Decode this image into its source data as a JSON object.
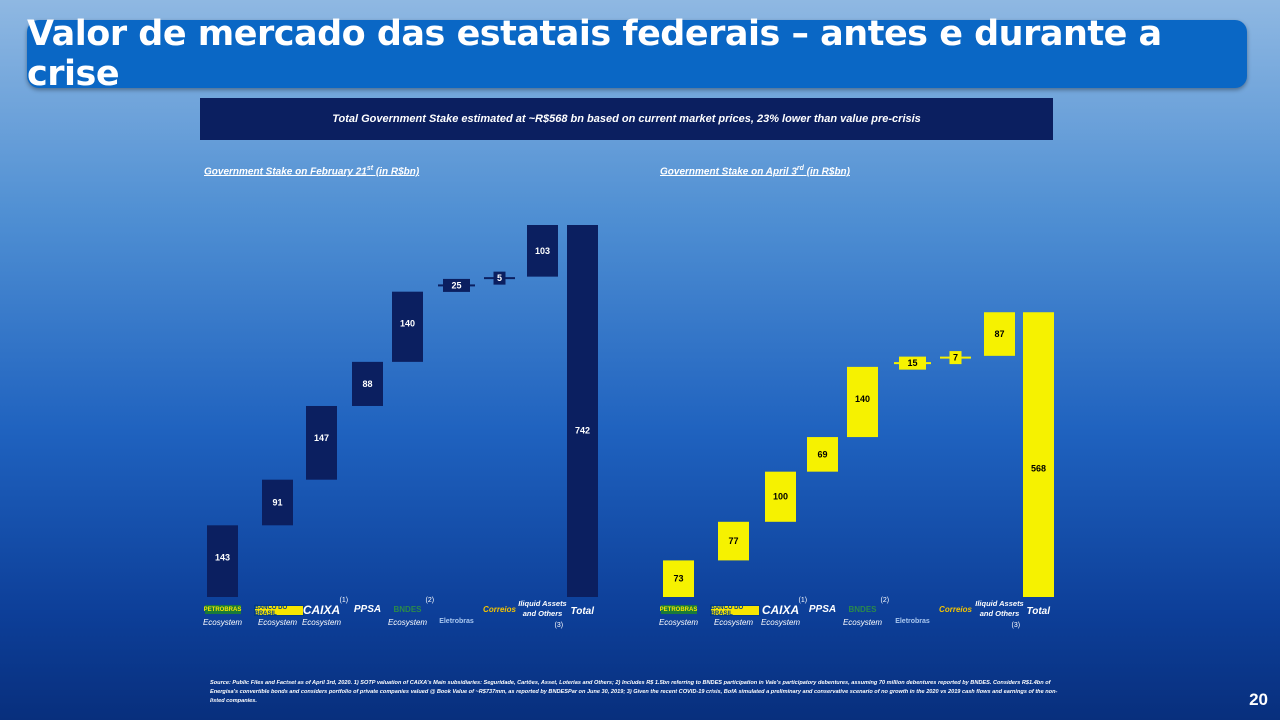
{
  "title": "Valor de mercado das estatais federais – antes e durante a crise",
  "banner": "Total Government Stake estimated at ~R$568 bn based on current market prices, 23% lower than value pre-crisis",
  "categories": [
    {
      "logo": "PETROBRAS",
      "label": "Ecosystem",
      "note": ""
    },
    {
      "logo": "BANCO DO BRASIL",
      "label": "Ecosystem",
      "note": ""
    },
    {
      "logo": "CAIXA",
      "label": "Ecosystem",
      "note": "(1)"
    },
    {
      "logo": "PPSA",
      "label": "",
      "note": ""
    },
    {
      "logo": "BNDES",
      "label": "Ecosystem",
      "note": "(2)"
    },
    {
      "logo": "Eletrobras",
      "label": "",
      "note": ""
    },
    {
      "logo": "Correios",
      "label": "",
      "note": ""
    },
    {
      "logo": "",
      "label": "Iliquid Assets and Others",
      "note": "(3)"
    },
    {
      "logo": "",
      "label": "Total",
      "note": ""
    }
  ],
  "chart_data": [
    {
      "type": "bar",
      "title": "Government Stake on February 21st (in R$bn)",
      "title_main": "Government Stake on February 21",
      "title_sup": "st",
      "title_tail": " (in R$bn)",
      "categories": [
        "Petrobras Ecosystem",
        "Banco do Brasil Ecosystem",
        "Caixa Ecosystem",
        "PPSA",
        "BNDES Ecosystem",
        "Eletrobras",
        "Correios",
        "Iliquid Assets and Others",
        "Total"
      ],
      "values": [
        143,
        91,
        147,
        88,
        140,
        25,
        5,
        103,
        742
      ],
      "labels": [
        "143",
        "91",
        "147",
        "88",
        "140",
        "25",
        "5",
        "103",
        "742"
      ],
      "waterfall": true,
      "color": "#0b1f60",
      "label_color": "#ffffff"
    },
    {
      "type": "bar",
      "title": "Government Stake on April 3rd (in R$bn)",
      "title_main": "Government Stake on April 3",
      "title_sup": "rd",
      "title_tail": " (in R$bn)",
      "categories": [
        "Petrobras Ecosystem",
        "Banco do Brasil Ecosystem",
        "Caixa Ecosystem",
        "PPSA",
        "BNDES Ecosystem",
        "Eletrobras",
        "Correios",
        "Iliquid Assets and Others",
        "Total"
      ],
      "values": [
        73,
        77,
        100,
        69,
        140,
        15,
        7,
        87,
        568
      ],
      "labels": [
        "73",
        "77",
        "100",
        "69",
        "140",
        "15",
        "7",
        "87",
        "568"
      ],
      "waterfall": true,
      "color": "#f6f200",
      "label_color": "#000000"
    }
  ],
  "source": "Source: Public Files and Factset as of April 3rd, 2020. 1) SOTP valuation of CAIXA's Main subsidiaries: Seguridade, Cartões, Asset, Loterias and Others; 2) Includes R$ 1.5bn referring to BNDES participation in Vale's participatory debentures, assuming 70 million debentures reported by BNDES. Considers R$1.4bn of Energisa's convertible bonds and considers portfolio of private companies valued @ Book Value of ~R$737mm, as reported by BNDESPar on June 30, 2019; 3) Given the recent COVID-19 crisis, BofA simulated a preliminary and conservative scenario of no growth in the 2020 vs 2019 cash flows and earnings of the non-listed companies.",
  "page_number": "20"
}
